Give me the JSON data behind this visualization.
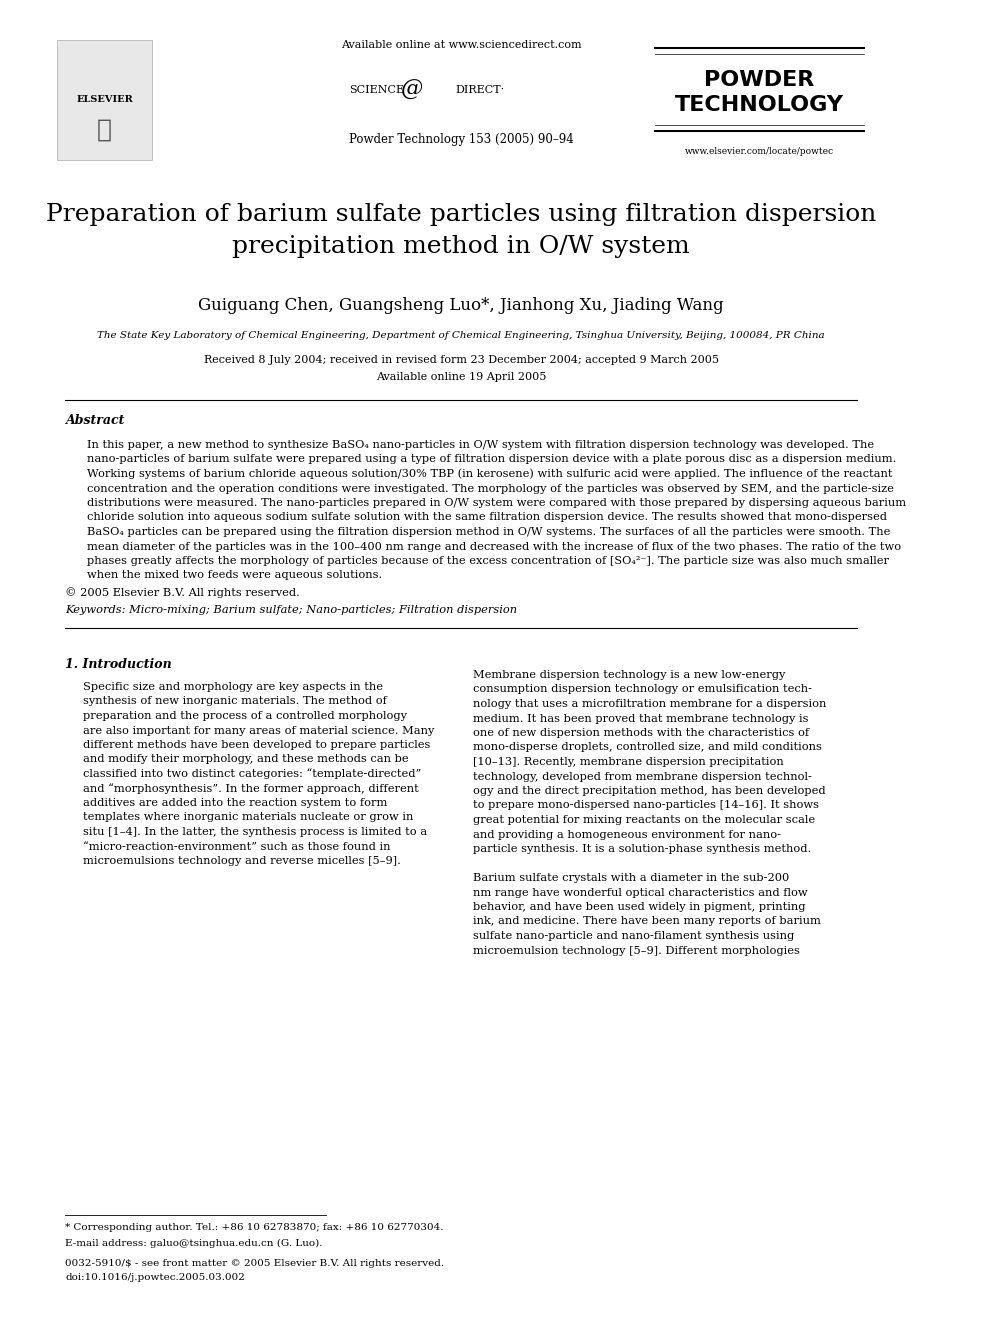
{
  "bg_color": "#ffffff",
  "header": {
    "available_online": "Available online at www.sciencedirect.com",
    "journal_info": "Powder Technology 153 (2005) 90–94",
    "journal_name_line1": "POWDER",
    "journal_name_line2": "TECHNOLOGY",
    "website": "www.elsevier.com/locate/powtec",
    "elsevier_label": "ELSEVIER"
  },
  "title": "Preparation of barium sulfate particles using filtration dispersion\nprecipitation method in O/W system",
  "authors": "Guiguang Chen, Guangsheng Luo*, Jianhong Xu, Jiading Wang",
  "affiliation": "The State Key Laboratory of Chemical Engineering, Department of Chemical Engineering, Tsinghua University, Beijing, 100084, PR China",
  "received": "Received 8 July 2004; received in revised form 23 December 2004; accepted 9 March 2005",
  "available": "Available online 19 April 2005",
  "abstract_title": "Abstract",
  "abstract_text": "In this paper, a new method to synthesize BaSO₄ nano-particles in O/W system with filtration dispersion technology was developed. The nano-particles of barium sulfate were prepared using a type of filtration dispersion device with a plate porous disc as a dispersion medium. Working systems of barium chloride aqueous solution/30% TBP (in kerosene) with sulfuric acid were applied. The influence of the reactant concentration and the operation conditions were investigated. The morphology of the particles was observed by SEM, and the particle-size distributions were measured. The nano-particles prepared in O/W system were compared with those prepared by dispersing aqueous barium chloride solution into aqueous sodium sulfate solution with the same filtration dispersion device. The results showed that mono-dispersed BaSO₄ particles can be prepared using the filtration dispersion method in O/W systems. The surfaces of all the particles were smooth. The mean diameter of the particles was in the 100–400 nm range and decreased with the increase of flux of the two phases. The ratio of the two phases greatly affects the morphology of particles because of the excess concentration of [SO₄²⁻]. The particle size was also much smaller when the mixed two feeds were aqueous solutions.",
  "copyright": "© 2005 Elsevier B.V. All rights reserved.",
  "keywords": "Keywords: Micro-mixing; Barium sulfate; Nano-particles; Filtration dispersion",
  "section1_title": "1. Introduction",
  "section1_col1": "Specific size and morphology are key aspects in the synthesis of new inorganic materials. The method of preparation and the process of a controlled morphology are also important for many areas of material science. Many different methods have been developed to prepare particles and modify their morphology, and these methods can be classified into two distinct categories: “template-directed” and “morphosynthesis”. In the former approach, different additives are added into the reaction system to form templates where inorganic materials nucleate or grow in situ [1–4]. In the latter, the synthesis process is limited to a “micro-reaction-environment” such as those found in microemulsions technology and reverse micelles [5–9].",
  "section1_col2": "Membrane dispersion technology is a new low-energy consumption dispersion technology or emulsification technology that uses a microfiltration membrane for a dispersion medium. It has been proved that membrane technology is one of new dispersion methods with the characteristics of mono-disperse droplets, controlled size, and mild conditions [10–13]. Recently, membrane dispersion precipitation technology, developed from membrane dispersion technology and the direct precipitation method, has been developed to prepare mono-dispersed nano-particles [14–16]. It shows great potential for mixing reactants on the molecular scale and providing a homogeneous environment for nanoparticle synthesis. It is a solution-phase synthesis method.\n\nBarium sulfate crystals with a diameter in the sub-200 nm range have wonderful optical characteristics and flow behavior, and have been used widely in pigment, printing ink, and medicine. There have been many reports of barium sulfate nano-particle and nano-filament synthesis using microemulsion technology [5–9]. Different morphologies",
  "footnote_star": "* Corresponding author. Tel.: +86 10 62783870; fax: +86 10 62770304.",
  "footnote_email": "E-mail address: galuo@tsinghua.edu.cn (G. Luo).",
  "footnote_issn": "0032-5910/$ - see front matter © 2005 Elsevier B.V. All rights reserved.",
  "footnote_doi": "doi:10.1016/j.powtec.2005.03.002"
}
